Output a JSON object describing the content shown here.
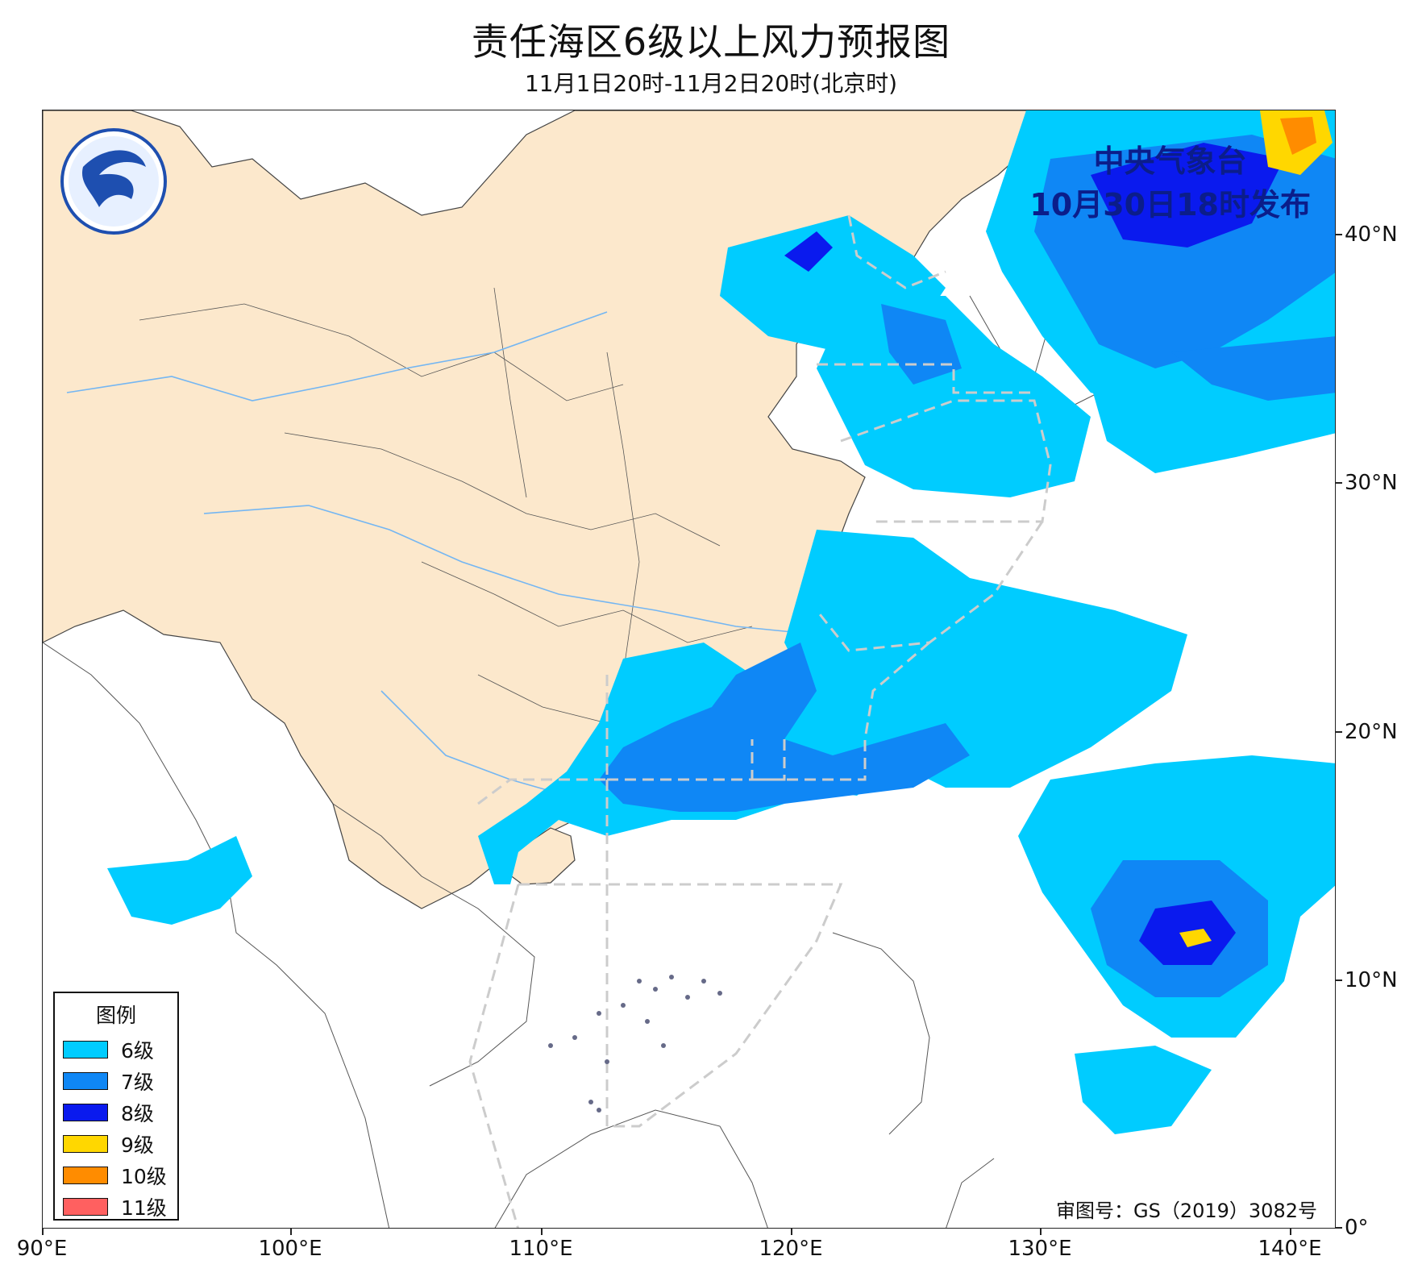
{
  "title": "责任海区6级以上风力预报图",
  "subtitle": "11月1日20时-11月2日20时(北京时)",
  "issuer": {
    "name": "中央气象台",
    "issued": "10月30日18时发布"
  },
  "review_number": "审图号：GS（2019）3082号",
  "axes": {
    "longitude_labels": [
      "90°E",
      "100°E",
      "110°E",
      "120°E",
      "130°E",
      "140°E"
    ],
    "latitude_labels": [
      "40°N",
      "30°N",
      "20°N",
      "10°N",
      "0°"
    ]
  },
  "legend": {
    "title": "图例",
    "items": [
      {
        "label": "6级",
        "color": "#00ccff"
      },
      {
        "label": "7级",
        "color": "#0f87f5"
      },
      {
        "label": "8级",
        "color": "#0a1aee"
      },
      {
        "label": "9级",
        "color": "#ffd700"
      },
      {
        "label": "10级",
        "color": "#ff8c00"
      },
      {
        "label": "11级",
        "color": "#ff6060"
      }
    ]
  },
  "colors": {
    "china_land": "#fce8cc",
    "sea": "#ffffff",
    "border": "#333333",
    "river": "#74b6f2",
    "zone_dash": "#cccccc",
    "logo_blue": "#1e4fb0"
  }
}
